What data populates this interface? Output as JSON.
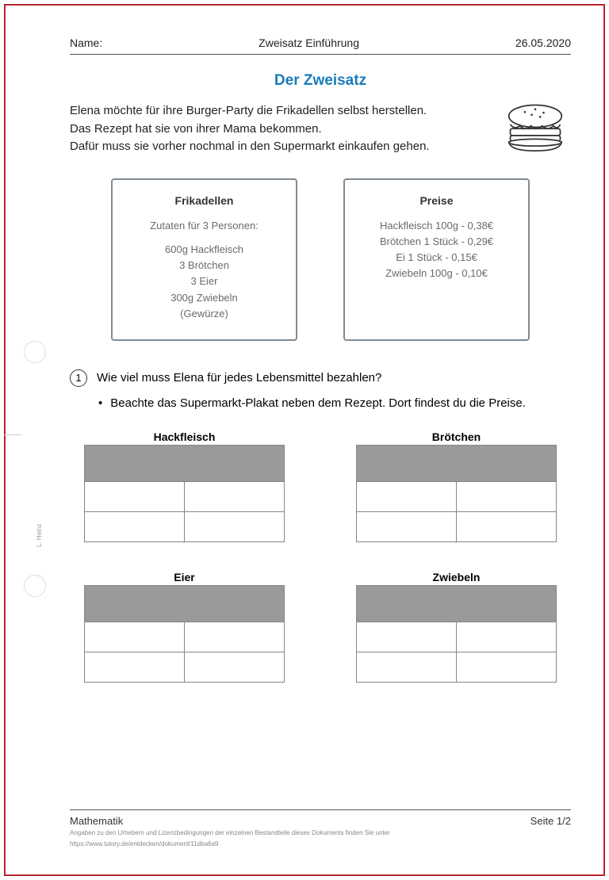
{
  "header": {
    "name_label": "Name:",
    "center": "Zweisatz Einführung",
    "date": "26.05.2020"
  },
  "title": "Der Zweisatz",
  "intro": "Elena möchte für ihre Burger-Party die Frikadellen selbst herstellen.\nDas Rezept hat sie von ihrer Mama bekommen.\nDafür muss sie vorher nochmal in den Supermarkt einkaufen gehen.",
  "recipe_box": {
    "title": "Frikadellen",
    "subtitle": "Zutaten für 3 Personen:",
    "lines": [
      "600g Hackfleisch",
      "3 Brötchen",
      "3 Eier",
      "300g Zwiebeln",
      "(Gewürze)"
    ]
  },
  "price_box": {
    "title": "Preise",
    "lines": [
      "Hackfleisch 100g - 0,38€",
      "Brötchen 1 Stück - 0,29€",
      "Ei 1 Stück - 0,15€",
      "Zwiebeln 100g - 0,10€"
    ]
  },
  "question": {
    "number": "1",
    "text": "Wie viel muss Elena für jedes Lebensmittel bezahlen?",
    "bullet": "Beachte das Supermarkt-Plakat neben dem Rezept. Dort findest du die Preise."
  },
  "tables": [
    "Hackfleisch",
    "Brötchen",
    "Eier",
    "Zwiebeln"
  ],
  "footer": {
    "subject": "Mathematik",
    "page": "Seite 1/2",
    "fine1": "Angaben zu den Urhebern und Lizenzbedingungen der einzelnen Bestandteile dieses Dokuments finden Sie unter",
    "fine2": "https://www.tutory.de/entdecken/dokument/11dba6a9"
  },
  "side_author": "L. Heinz",
  "colors": {
    "border": "#b8232f",
    "title": "#1a7cb8",
    "box_border": "#7f8a93",
    "table_header_bg": "#9a9a9a",
    "table_border": "#878787"
  }
}
